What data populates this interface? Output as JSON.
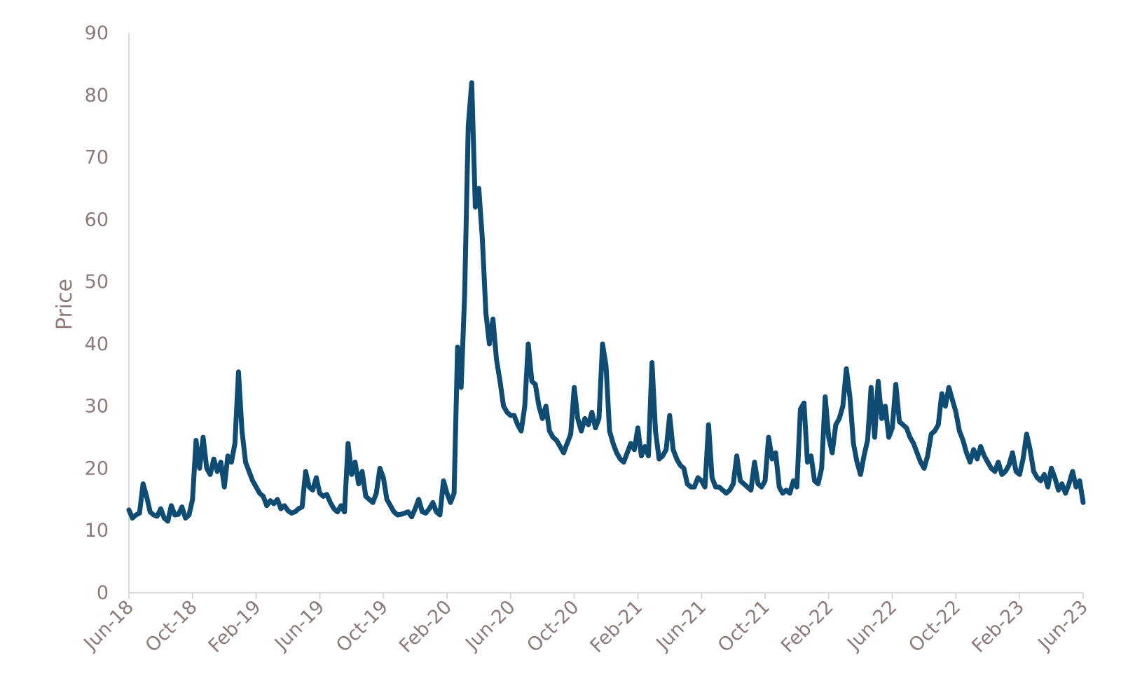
{
  "chart_data": {
    "type": "line",
    "title": "",
    "xlabel": "",
    "ylabel": "Price",
    "ylim": [
      0,
      90
    ],
    "y_ticks": [
      0,
      10,
      20,
      30,
      40,
      50,
      60,
      70,
      80,
      90
    ],
    "x_tick_labels": [
      "Jun-18",
      "Oct-18",
      "Feb-19",
      "Jun-19",
      "Oct-19",
      "Feb-20",
      "Jun-20",
      "Oct-20",
      "Feb-21",
      "Jun-21",
      "Oct-21",
      "Feb-22",
      "Jun-22",
      "Oct-22",
      "Feb-23",
      "Jun-23"
    ],
    "grid": false,
    "legend": "none",
    "colors": {
      "series": "#0e4c74",
      "axis": "#d9d9d9",
      "text": "#8c7b78"
    },
    "series": [
      {
        "values": [
          13.3,
          12.0,
          12.5,
          12.8,
          17.5,
          15.5,
          13.0,
          12.5,
          12.3,
          13.5,
          12.0,
          11.5,
          14.0,
          12.5,
          12.6,
          13.8,
          12.0,
          12.5,
          15.0,
          24.5,
          20.0,
          25.0,
          20.0,
          19.0,
          21.5,
          19.5,
          21.0,
          17.0,
          22.0,
          21.0,
          24.0,
          35.5,
          26.0,
          21.0,
          19.5,
          18.0,
          17.0,
          16.0,
          15.5,
          14.0,
          14.8,
          14.3,
          15.0,
          13.5,
          14.0,
          13.2,
          12.8,
          13.0,
          13.5,
          13.8,
          19.5,
          17.0,
          16.5,
          18.5,
          16.0,
          15.5,
          15.8,
          14.5,
          13.5,
          13.0,
          14.0,
          13.0,
          24.0,
          19.0,
          21.0,
          17.5,
          19.5,
          15.5,
          15.0,
          14.5,
          16.0,
          20.0,
          18.5,
          15.0,
          14.0,
          13.0,
          12.5,
          12.6,
          12.8,
          13.0,
          12.2,
          13.5,
          15.0,
          13.0,
          12.8,
          13.5,
          14.5,
          13.0,
          12.5,
          18.0,
          16.0,
          14.5,
          16.0,
          39.5,
          33.0,
          48.0,
          75.0,
          82.0,
          62.0,
          65.0,
          57.0,
          45.0,
          40.0,
          44.0,
          37.5,
          34.0,
          30.0,
          29.0,
          28.5,
          28.5,
          27.0,
          26.0,
          30.0,
          40.0,
          34.0,
          33.5,
          30.0,
          28.0,
          30.0,
          26.0,
          25.0,
          24.5,
          23.5,
          22.5,
          24.0,
          25.5,
          33.0,
          28.0,
          26.0,
          28.0,
          27.0,
          29.0,
          26.5,
          28.0,
          40.0,
          36.5,
          26.0,
          24.0,
          22.5,
          21.5,
          21.0,
          22.5,
          24.0,
          23.0,
          26.5,
          22.0,
          23.5,
          22.0,
          37.0,
          26.0,
          21.5,
          22.0,
          23.0,
          28.5,
          23.0,
          21.5,
          20.5,
          20.0,
          17.5,
          17.0,
          17.0,
          18.5,
          18.0,
          17.0,
          27.0,
          18.5,
          17.0,
          17.0,
          16.5,
          16.0,
          16.5,
          17.5,
          22.0,
          18.0,
          17.5,
          17.0,
          16.5,
          21.0,
          17.5,
          17.0,
          18.0,
          25.0,
          21.5,
          22.5,
          17.0,
          16.0,
          16.5,
          16.0,
          18.0,
          17.0,
          29.5,
          30.5,
          21.0,
          22.0,
          18.0,
          17.5,
          20.0,
          31.5,
          25.0,
          22.5,
          27.0,
          28.0,
          30.0,
          36.0,
          31.5,
          24.0,
          21.0,
          19.0,
          22.0,
          24.5,
          33.0,
          25.0,
          34.0,
          28.0,
          30.0,
          25.0,
          26.5,
          33.5,
          27.5,
          27.0,
          26.5,
          25.0,
          24.0,
          22.5,
          21.0,
          20.0,
          22.0,
          25.5,
          26.0,
          27.0,
          32.0,
          30.0,
          33.0,
          31.0,
          29.0,
          26.0,
          24.5,
          22.5,
          21.0,
          23.0,
          21.5,
          23.5,
          22.0,
          21.0,
          20.0,
          19.5,
          21.0,
          19.0,
          19.5,
          20.5,
          22.5,
          19.5,
          19.0,
          21.5,
          25.5,
          23.0,
          19.5,
          18.5,
          18.0,
          19.0,
          17.0,
          20.0,
          18.5,
          16.5,
          17.5,
          16.0,
          17.5,
          19.5,
          17.0,
          18.0,
          14.5
        ]
      }
    ]
  }
}
